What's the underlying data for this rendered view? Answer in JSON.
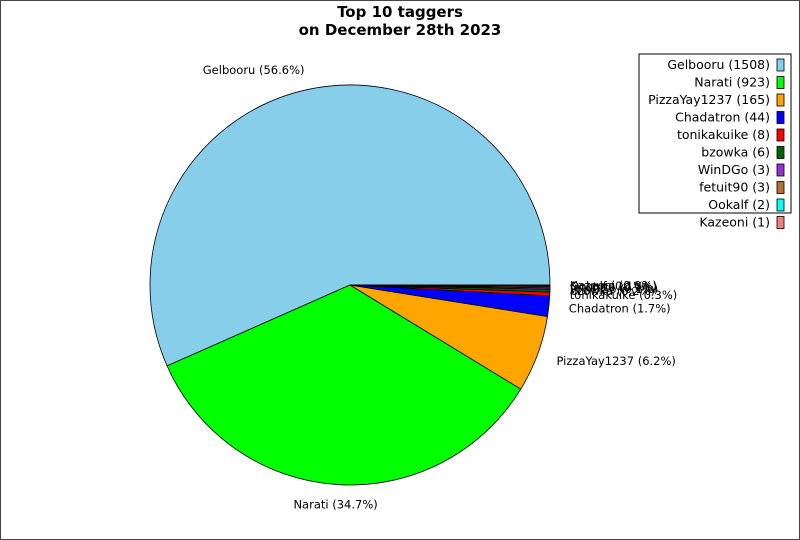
{
  "chart_data": {
    "type": "pie",
    "title_lines": [
      "Top 10 taggers",
      "on December 28th 2023"
    ],
    "legend_position": "top-right",
    "slices": [
      {
        "name": "Gelbooru",
        "value": 1508,
        "color": "#87CEEB",
        "pie_label": "Gelbooru (56.6%)",
        "legend_label": "Gelbooru (1508)"
      },
      {
        "name": "Narati",
        "value": 923,
        "color": "#00FF00",
        "pie_label": "Narati (34.7%)",
        "legend_label": "Narati (923)"
      },
      {
        "name": "PizzaYay1237",
        "value": 165,
        "color": "#FFA500",
        "pie_label": "PizzaYay1237 (6.2%)",
        "legend_label": "PizzaYay1237 (165)"
      },
      {
        "name": "Chadatron",
        "value": 44,
        "color": "#0000FF",
        "pie_label": "Chadatron (1.7%)",
        "legend_label": "Chadatron (44)"
      },
      {
        "name": "tonikakuike",
        "value": 8,
        "color": "#FF0000",
        "pie_label": "tonikakuike (0.3%)",
        "legend_label": "tonikakuike (8)"
      },
      {
        "name": "bzowka",
        "value": 6,
        "color": "#006400",
        "pie_label": "bzowka (0.2%)",
        "legend_label": "bzowka (6)"
      },
      {
        "name": "WinDGo",
        "value": 3,
        "color": "#9932CC",
        "pie_label": "WinDGo (0.1%)",
        "legend_label": "WinDGo (3)"
      },
      {
        "name": "fetuit90",
        "value": 3,
        "color": "#B8722C",
        "pie_label": "fetuit90 (0.1%)",
        "legend_label": "fetuit90 (3)"
      },
      {
        "name": "Ookalf",
        "value": 2,
        "color": "#00FFFF",
        "pie_label": "Ookalf (0.1%)",
        "legend_label": "Ookalf (2)"
      },
      {
        "name": "Kazeoni",
        "value": 1,
        "color": "#F08080",
        "pie_label": "Kazeoni (0.0%)",
        "legend_label": "Kazeoni (1)"
      }
    ]
  }
}
